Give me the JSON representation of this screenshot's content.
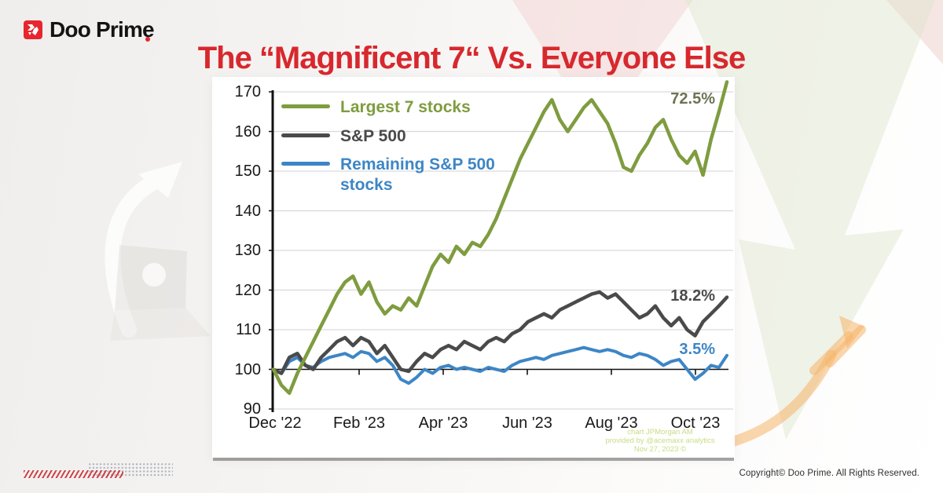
{
  "logo": {
    "text": "Doo Prime"
  },
  "header": {
    "title": "The “Magnificent 7“ Vs. Everyone Else"
  },
  "footer": {
    "copyright": "Copyright© Doo Prime. All Rights Reserved."
  },
  "colors": {
    "brand_red": "#e8252e",
    "title_red": "#d7282e",
    "axis_text": "#191919",
    "gridline": "#d9d9d9",
    "credit_green": "#c8dc82"
  },
  "chart_data": {
    "type": "line",
    "title": "",
    "x_axis": {
      "tick_labels": [
        "Dec '22",
        "Feb '23",
        "Apr '23",
        "Jun '23",
        "Aug '23",
        "Oct '23"
      ]
    },
    "y_axis": {
      "min": 90,
      "max": 170,
      "ticks": [
        170,
        160,
        150,
        140,
        130,
        120,
        110,
        100,
        90
      ]
    },
    "baseline_value": 100,
    "grid": true,
    "legend_position": "top-left",
    "series": [
      {
        "name": "Largest 7 stocks",
        "color": "#7f9c3f",
        "end_label": "72.5%",
        "end_label_color": "#6c7352",
        "values": [
          100,
          96,
          94,
          99,
          103,
          107,
          111,
          115,
          119,
          122,
          123.5,
          119,
          122,
          117,
          114,
          116,
          115,
          118,
          116,
          121,
          126,
          129,
          127,
          131,
          129,
          132,
          131,
          134,
          138,
          143,
          148,
          153,
          157,
          161,
          165,
          168,
          163,
          160,
          163,
          166,
          168,
          165,
          162,
          157,
          151,
          150,
          154,
          157,
          161,
          163,
          158,
          154,
          152,
          155,
          149,
          158,
          165,
          172.5
        ]
      },
      {
        "name": "S&P 500",
        "color": "#4a4a4b",
        "end_label": "18.2%",
        "end_label_color": "#4a4a4b",
        "values": [
          100,
          99,
          103,
          104,
          101,
          100,
          103,
          105,
          107,
          108,
          106,
          108,
          107,
          104,
          106,
          103,
          100,
          99.5,
          102,
          104,
          103,
          105,
          106,
          105,
          107,
          106,
          105,
          107,
          108,
          107,
          109,
          110,
          112,
          113,
          114,
          113,
          115,
          116,
          117,
          118,
          119,
          119.5,
          118,
          119,
          117,
          115,
          113,
          114,
          116,
          113,
          111,
          113,
          110,
          108.5,
          112,
          114,
          116,
          118.2
        ]
      },
      {
        "name": "Remaining S&P 500 stocks",
        "color": "#3d86c6",
        "end_label": "3.5%",
        "end_label_color": "#3d86c6",
        "values": [
          100,
          99,
          102,
          103,
          101,
          100.5,
          102,
          103,
          103.5,
          104,
          103,
          104.5,
          104,
          102,
          103,
          101,
          97.5,
          96.5,
          98,
          100,
          99,
          100.5,
          101,
          100,
          100.5,
          100,
          99.5,
          100.5,
          100,
          99.5,
          101,
          102,
          102.5,
          103,
          102.5,
          103.5,
          104,
          104.5,
          105,
          105.5,
          105,
          104.5,
          105,
          104.5,
          103.5,
          103,
          104,
          103.5,
          102.5,
          101,
          102,
          102.5,
          100,
          97.5,
          99,
          101,
          100.5,
          103.5
        ]
      }
    ],
    "source_note": [
      "chart JPMorgan AM",
      "provided by @acemaxx analytics",
      "Nov 27, 2023 ©"
    ]
  }
}
